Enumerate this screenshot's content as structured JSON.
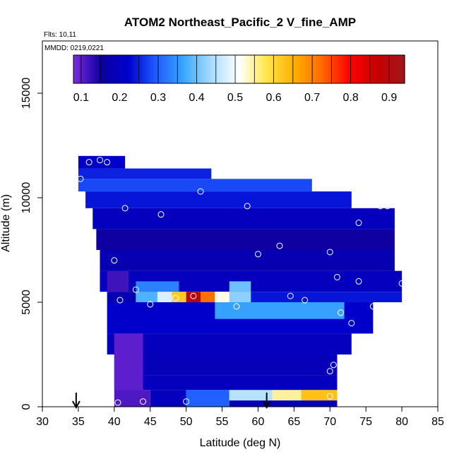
{
  "chart_data": {
    "type": "heatmap",
    "title": "ATOM2 Northeast_Pacific_2 V_fine_AMP",
    "flights_label": "Flts: 10,11",
    "mmdd_label": "MMDD: 0219,0221",
    "xlabel": "Latitude (deg N)",
    "ylabel": "Altitude (m)",
    "xlim": [
      30,
      85
    ],
    "ylim": [
      0,
      17500
    ],
    "xticks": [
      "30",
      "35",
      "40",
      "45",
      "50",
      "55",
      "60",
      "65",
      "70",
      "75",
      "80",
      "85"
    ],
    "yticks": [
      "0",
      "5000",
      "10000",
      "15000"
    ],
    "colorbar": {
      "range": [
        0.08,
        0.94
      ],
      "ticks": [
        "0.1",
        "0.2",
        "0.3",
        "0.4",
        "0.5",
        "0.6",
        "0.7",
        "0.8",
        "0.9"
      ],
      "colors": [
        "#7d2be0",
        "#0c00a0",
        "#0000cd",
        "#1f5cff",
        "#3aa8ff",
        "#a9dcff",
        "#ffffff",
        "#ffe54a",
        "#ffb000",
        "#ff6a00",
        "#ff0000",
        "#c80000",
        "#a0151b"
      ]
    },
    "region": [
      {
        "lat": 36.0,
        "alt_bottom": 11500,
        "alt_top": 12000
      },
      {
        "lat": 35.0,
        "alt_bottom": 10000,
        "alt_top": 11500
      },
      {
        "lat": 36.0,
        "alt_bottom": 8500,
        "alt_top": 10000
      },
      {
        "lat": 37.0,
        "alt_bottom": 7000,
        "alt_top": 8500
      },
      {
        "lat": 38.0,
        "alt_bottom": 5000,
        "alt_top": 7000
      },
      {
        "lat": 39.0,
        "alt_bottom": 3000,
        "alt_top": 5000
      },
      {
        "lat": 40.0,
        "alt_bottom": 1500,
        "alt_top": 3000
      },
      {
        "lat": 40.0,
        "alt_bottom": 0,
        "alt_top": 1500
      }
    ],
    "cells": [
      {
        "lat0": 35,
        "lat1": 41.5,
        "alt0": 11400,
        "alt1": 12000,
        "v": 0.22
      },
      {
        "lat0": 35,
        "lat1": 53.5,
        "alt0": 10900,
        "alt1": 11400,
        "v": 0.25
      },
      {
        "lat0": 35,
        "lat1": 67.5,
        "alt0": 10300,
        "alt1": 10900,
        "v": 0.28
      },
      {
        "lat0": 36,
        "lat1": 73,
        "alt0": 9500,
        "alt1": 10300,
        "v": 0.24
      },
      {
        "lat0": 37,
        "lat1": 79,
        "alt0": 8500,
        "alt1": 9500,
        "v": 0.2
      },
      {
        "lat0": 37.5,
        "lat1": 79,
        "alt0": 7500,
        "alt1": 8500,
        "v": 0.15
      },
      {
        "lat0": 38,
        "lat1": 79,
        "alt0": 6500,
        "alt1": 7500,
        "v": 0.18
      },
      {
        "lat0": 38,
        "lat1": 80,
        "alt0": 5500,
        "alt1": 6500,
        "v": 0.2
      },
      {
        "lat0": 39,
        "lat1": 42,
        "alt0": 5500,
        "alt1": 6500,
        "v": 0.12
      },
      {
        "lat0": 43,
        "lat1": 49,
        "alt0": 5500,
        "alt1": 6000,
        "v": 0.33
      },
      {
        "lat0": 56,
        "lat1": 59,
        "alt0": 5500,
        "alt1": 6000,
        "v": 0.4
      },
      {
        "lat0": 43,
        "lat1": 46,
        "alt0": 5000,
        "alt1": 5500,
        "v": 0.38
      },
      {
        "lat0": 46,
        "lat1": 48,
        "alt0": 5000,
        "alt1": 5500,
        "v": 0.48
      },
      {
        "lat0": 48,
        "lat1": 50,
        "alt0": 5000,
        "alt1": 5500,
        "v": 0.62
      },
      {
        "lat0": 50,
        "lat1": 52,
        "alt0": 5000,
        "alt1": 5500,
        "v": 0.9
      },
      {
        "lat0": 52,
        "lat1": 54,
        "alt0": 5000,
        "alt1": 5500,
        "v": 0.72
      },
      {
        "lat0": 54,
        "lat1": 56,
        "alt0": 5000,
        "alt1": 5500,
        "v": 0.52
      },
      {
        "lat0": 56,
        "lat1": 59,
        "alt0": 5000,
        "alt1": 5500,
        "v": 0.42
      },
      {
        "lat0": 39,
        "lat1": 43,
        "alt0": 5000,
        "alt1": 5500,
        "v": 0.18
      },
      {
        "lat0": 59,
        "lat1": 80,
        "alt0": 5000,
        "alt1": 5500,
        "v": 0.24
      },
      {
        "lat0": 39,
        "lat1": 76,
        "alt0": 3500,
        "alt1": 5000,
        "v": 0.22
      },
      {
        "lat0": 54,
        "lat1": 72,
        "alt0": 4200,
        "alt1": 5000,
        "v": 0.36
      },
      {
        "lat0": 39,
        "lat1": 73,
        "alt0": 2500,
        "alt1": 3500,
        "v": 0.2
      },
      {
        "lat0": 40,
        "lat1": 71,
        "alt0": 1500,
        "alt1": 2500,
        "v": 0.19
      },
      {
        "lat0": 40,
        "lat1": 71,
        "alt0": 800,
        "alt1": 1500,
        "v": 0.2
      },
      {
        "lat0": 40,
        "lat1": 44,
        "alt0": 800,
        "alt1": 3500,
        "v": 0.1
      },
      {
        "lat0": 40,
        "lat1": 45,
        "alt0": 0,
        "alt1": 800,
        "v": 0.11
      },
      {
        "lat0": 45,
        "lat1": 50,
        "alt0": 0,
        "alt1": 800,
        "v": 0.2
      },
      {
        "lat0": 50,
        "lat1": 56,
        "alt0": 0,
        "alt1": 800,
        "v": 0.3
      },
      {
        "lat0": 56,
        "lat1": 62,
        "alt0": 300,
        "alt1": 800,
        "v": 0.45
      },
      {
        "lat0": 62,
        "lat1": 66,
        "alt0": 300,
        "alt1": 800,
        "v": 0.55
      },
      {
        "lat0": 66,
        "lat1": 71,
        "alt0": 300,
        "alt1": 800,
        "v": 0.63
      },
      {
        "lat0": 56,
        "lat1": 71,
        "alt0": 0,
        "alt1": 300,
        "v": 0.2
      }
    ],
    "sample_points": [
      {
        "lat": 36.5,
        "alt": 11700
      },
      {
        "lat": 38.0,
        "alt": 11800
      },
      {
        "lat": 39.0,
        "alt": 11700
      },
      {
        "lat": 35.3,
        "alt": 10900
      },
      {
        "lat": 52.0,
        "alt": 10300
      },
      {
        "lat": 68.0,
        "alt": 10700
      },
      {
        "lat": 74.0,
        "alt": 10000
      },
      {
        "lat": 41.5,
        "alt": 9500
      },
      {
        "lat": 58.5,
        "alt": 9600
      },
      {
        "lat": 77.0,
        "alt": 9600
      },
      {
        "lat": 78.0,
        "alt": 9600
      },
      {
        "lat": 46.5,
        "alt": 9200
      },
      {
        "lat": 74.0,
        "alt": 8800
      },
      {
        "lat": 63.0,
        "alt": 7700
      },
      {
        "lat": 60.0,
        "alt": 7300
      },
      {
        "lat": 70.0,
        "alt": 7400
      },
      {
        "lat": 40.0,
        "alt": 7000
      },
      {
        "lat": 71.0,
        "alt": 6200
      },
      {
        "lat": 74.0,
        "alt": 6000
      },
      {
        "lat": 80.0,
        "alt": 5900
      },
      {
        "lat": 43.0,
        "alt": 5600
      },
      {
        "lat": 64.5,
        "alt": 5300
      },
      {
        "lat": 66.5,
        "alt": 5100
      },
      {
        "lat": 40.8,
        "alt": 5100
      },
      {
        "lat": 48.5,
        "alt": 5200
      },
      {
        "lat": 51.0,
        "alt": 5300
      },
      {
        "lat": 45.0,
        "alt": 4900
      },
      {
        "lat": 57.0,
        "alt": 4800
      },
      {
        "lat": 76.0,
        "alt": 4800
      },
      {
        "lat": 71.5,
        "alt": 4500
      },
      {
        "lat": 73.0,
        "alt": 4000
      },
      {
        "lat": 70.5,
        "alt": 2000
      },
      {
        "lat": 70.0,
        "alt": 1700
      },
      {
        "lat": 70.0,
        "alt": 500
      },
      {
        "lat": 44.0,
        "alt": 250
      },
      {
        "lat": 50.0,
        "alt": 250
      },
      {
        "lat": 40.5,
        "alt": 200
      }
    ],
    "arrows_lat": [
      34.7,
      61.2
    ]
  }
}
